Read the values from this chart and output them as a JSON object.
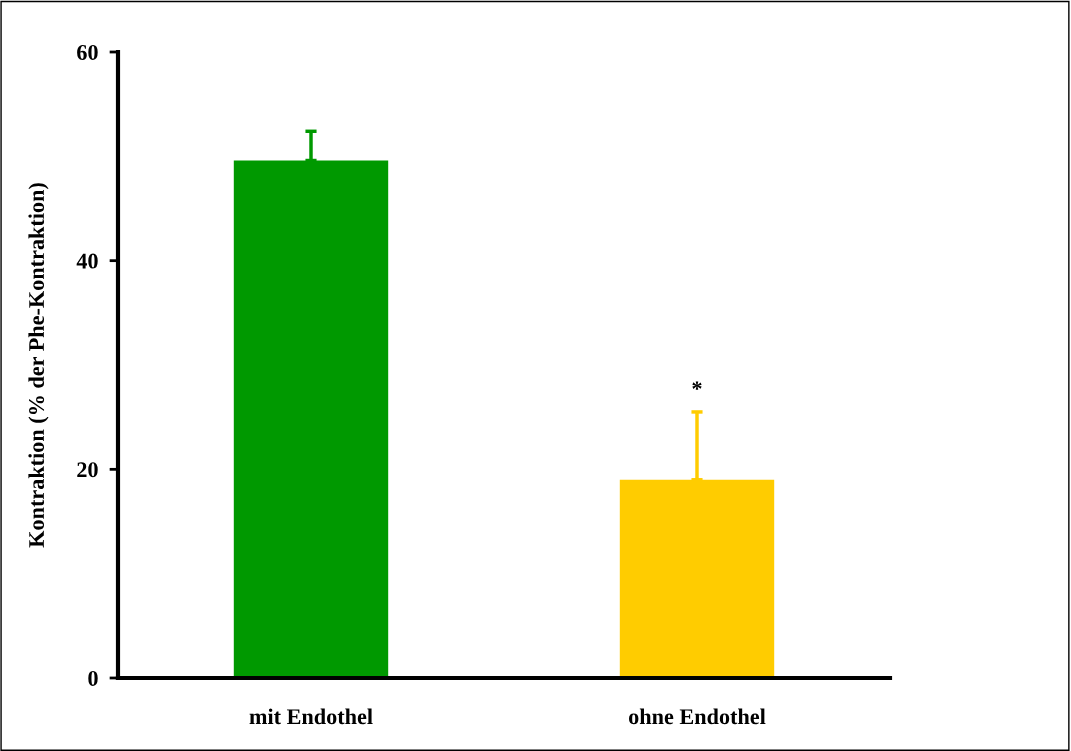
{
  "chart_data": {
    "type": "bar",
    "ylabel": "Kontraktion (% der Phe-Kontraktion)",
    "categories": [
      "mit Endothel",
      "ohne Endothel"
    ],
    "values": [
      49.6,
      19.0
    ],
    "colors": [
      "#009900",
      "#ffcc00"
    ],
    "errors": [
      [
        49.6,
        52.4
      ],
      [
        19.0,
        25.5
      ]
    ],
    "ylim": [
      0,
      60
    ],
    "yticks": [
      0,
      20,
      40,
      60
    ],
    "grid": false,
    "legend": false,
    "annotations": [
      "*"
    ]
  }
}
